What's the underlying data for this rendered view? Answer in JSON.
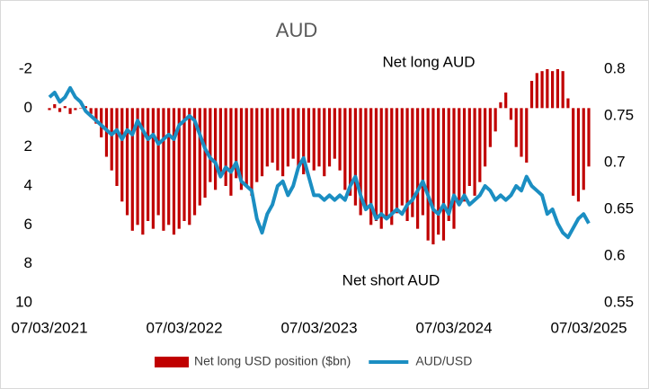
{
  "chart_data": {
    "type": "bar_line",
    "title": "AUD",
    "annotations": [
      "Net long AUD",
      "Net short AUD"
    ],
    "categories": [
      "07/03/2021",
      null,
      null,
      null,
      null,
      null,
      null,
      null,
      null,
      null,
      null,
      null,
      null,
      null,
      null,
      null,
      null,
      null,
      null,
      null,
      null,
      null,
      null,
      null,
      null,
      null,
      "07/03/2022",
      null,
      null,
      null,
      null,
      null,
      null,
      null,
      null,
      null,
      null,
      null,
      null,
      null,
      null,
      null,
      null,
      null,
      null,
      null,
      null,
      null,
      null,
      null,
      null,
      null,
      "07/03/2023",
      null,
      null,
      null,
      null,
      null,
      null,
      null,
      null,
      null,
      null,
      null,
      null,
      null,
      null,
      null,
      null,
      null,
      null,
      null,
      null,
      null,
      null,
      null,
      null,
      null,
      "07/03/2024",
      null,
      null,
      null,
      null,
      null,
      null,
      null,
      null,
      null,
      null,
      null,
      null,
      null,
      null,
      null,
      null,
      null,
      null,
      null,
      null,
      null,
      null,
      null,
      null,
      null,
      "07/03/2025"
    ],
    "series": [
      {
        "name": "Net long USD position ($bn)",
        "color": "#c00000",
        "axis": "y",
        "values": [
          0.1,
          -0.2,
          0.2,
          -0.1,
          0.3,
          0.1,
          0.0,
          -0.1,
          0.3,
          0.8,
          1.5,
          2.5,
          3.2,
          4.0,
          4.8,
          5.5,
          6.3,
          6.0,
          6.5,
          5.8,
          6.2,
          5.5,
          6.3,
          6.0,
          6.5,
          6.2,
          5.8,
          6.0,
          5.5,
          5.0,
          4.6,
          3.8,
          4.2,
          3.5,
          4.0,
          4.5,
          3.6,
          4.2,
          4.0,
          4.5,
          3.8,
          3.5,
          3.0,
          2.8,
          3.2,
          3.5,
          3.0,
          2.6,
          3.0,
          3.4,
          2.8,
          3.2,
          3.0,
          3.5,
          3.0,
          2.6,
          3.2,
          4.2,
          4.5,
          5.0,
          5.5,
          5.2,
          6.0,
          5.8,
          6.2,
          5.6,
          6.0,
          5.4,
          5.0,
          5.8,
          5.6,
          6.2,
          5.5,
          6.8,
          7.0,
          6.5,
          6.8,
          5.8,
          6.2,
          5.0,
          4.8,
          4.0,
          4.5,
          3.8,
          3.0,
          2.0,
          1.2,
          -0.3,
          -0.8,
          0.6,
          2.0,
          2.5,
          2.8,
          -1.4,
          -1.8,
          -1.9,
          -2.0,
          -1.9,
          -2.0,
          -1.9,
          -0.5,
          4.5,
          4.8,
          4.2,
          3.0
        ]
      },
      {
        "name": "AUD/USD",
        "color": "#1b8ec2",
        "axis": "y2",
        "values": [
          0.77,
          0.775,
          0.765,
          0.77,
          0.78,
          0.77,
          0.765,
          0.755,
          0.75,
          0.745,
          0.74,
          0.735,
          0.73,
          0.735,
          0.725,
          0.735,
          0.73,
          0.745,
          0.735,
          0.725,
          0.73,
          0.72,
          0.725,
          0.73,
          0.725,
          0.74,
          0.745,
          0.75,
          0.745,
          0.73,
          0.715,
          0.705,
          0.7,
          0.685,
          0.695,
          0.69,
          0.7,
          0.68,
          0.675,
          0.67,
          0.64,
          0.625,
          0.645,
          0.655,
          0.675,
          0.68,
          0.665,
          0.675,
          0.695,
          0.705,
          0.685,
          0.665,
          0.665,
          0.66,
          0.665,
          0.66,
          0.665,
          0.66,
          0.675,
          0.685,
          0.665,
          0.65,
          0.655,
          0.64,
          0.645,
          0.64,
          0.645,
          0.65,
          0.645,
          0.655,
          0.66,
          0.67,
          0.68,
          0.665,
          0.65,
          0.645,
          0.655,
          0.645,
          0.665,
          0.655,
          0.665,
          0.655,
          0.66,
          0.665,
          0.675,
          0.67,
          0.66,
          0.665,
          0.66,
          0.665,
          0.675,
          0.67,
          0.685,
          0.675,
          0.67,
          0.665,
          0.645,
          0.65,
          0.635,
          0.625,
          0.62,
          0.63,
          0.64,
          0.645,
          0.635
        ]
      }
    ],
    "ylim": [
      -2,
      10
    ],
    "yticks": [
      -2,
      0,
      2,
      4,
      6,
      8,
      10
    ],
    "y_inverted": true,
    "y2lim": [
      0.55,
      0.8
    ],
    "y2ticks": [
      0.55,
      0.6,
      0.65,
      0.7,
      0.75,
      0.8
    ],
    "legend": "bottom"
  }
}
